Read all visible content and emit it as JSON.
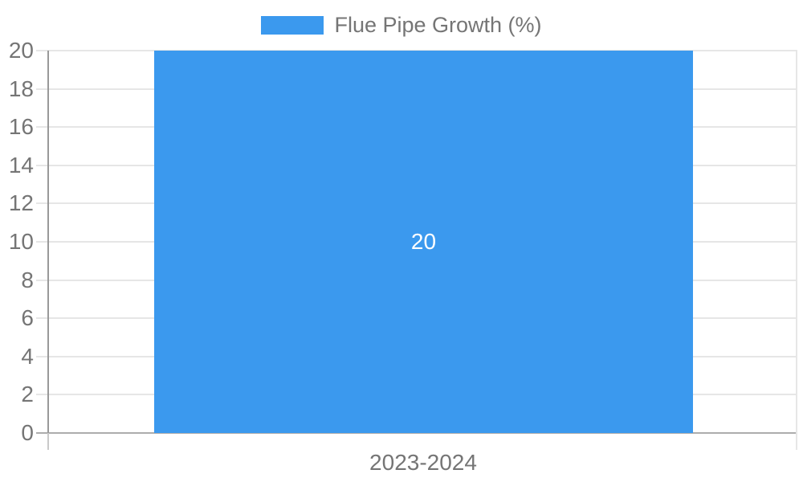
{
  "chart_data": {
    "type": "bar",
    "title": "",
    "legend": "Flue Pipe Growth (%)",
    "legend_position": "top",
    "categories": [
      "2023-2024"
    ],
    "series": [
      {
        "name": "Flue Pipe Growth (%)",
        "values": [
          20
        ]
      }
    ],
    "bar_value_labels": [
      "20"
    ],
    "xlabel": "",
    "ylabel": "",
    "ylim": [
      0,
      20
    ],
    "yticks": [
      0,
      2,
      4,
      6,
      8,
      10,
      12,
      14,
      16,
      18,
      20
    ],
    "grid": true,
    "colors": {
      "bar": "#3B99EE",
      "tick_text": "#757575",
      "grid": "#E6E6E6",
      "axis": "#999999",
      "baseline": "#ADADAD",
      "tick_extension": "#C9C9C9",
      "bar_label_text": "#FFFFFF",
      "background": "#FFFFFF"
    }
  }
}
